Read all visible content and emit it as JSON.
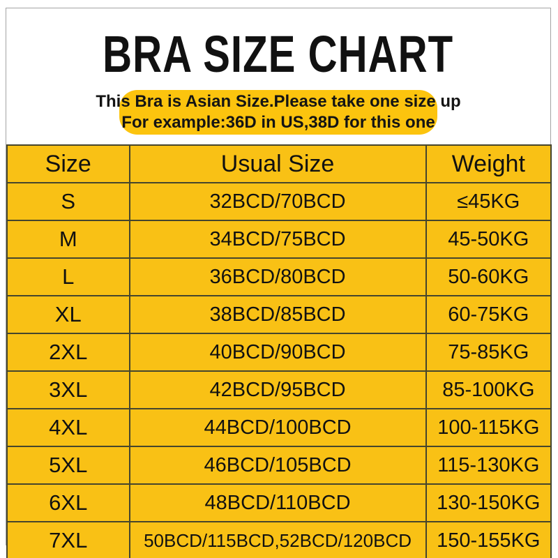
{
  "page": {
    "title": "BRA SIZE CHART",
    "notice": {
      "line1": "This Bra is Asian Size.Please take one size up",
      "line2": "For example:36D in US,38D for this one"
    }
  },
  "colors": {
    "table_yellow": "#f9c115",
    "pill_yellow": "#fcc40e",
    "grid_line": "#45452d",
    "frame_border": "#a3a3a3",
    "text": "#111111"
  },
  "chart_data": {
    "type": "table",
    "title": "BRA SIZE CHART",
    "columns": [
      "Size",
      "Usual Size",
      "Weight"
    ],
    "rows": [
      [
        "S",
        "32BCD/70BCD",
        "≤45KG"
      ],
      [
        "M",
        "34BCD/75BCD",
        "45-50KG"
      ],
      [
        "L",
        "36BCD/80BCD",
        "50-60KG"
      ],
      [
        "XL",
        "38BCD/85BCD",
        "60-75KG"
      ],
      [
        "2XL",
        "40BCD/90BCD",
        "75-85KG"
      ],
      [
        "3XL",
        "42BCD/95BCD",
        "85-100KG"
      ],
      [
        "4XL",
        "44BCD/100BCD",
        "100-115KG"
      ],
      [
        "5XL",
        "46BCD/105BCD",
        "115-130KG"
      ],
      [
        "6XL",
        "48BCD/110BCD",
        "130-150KG"
      ],
      [
        "7XL",
        "50BCD/115BCD,52BCD/120BCD",
        "150-155KG"
      ]
    ]
  }
}
